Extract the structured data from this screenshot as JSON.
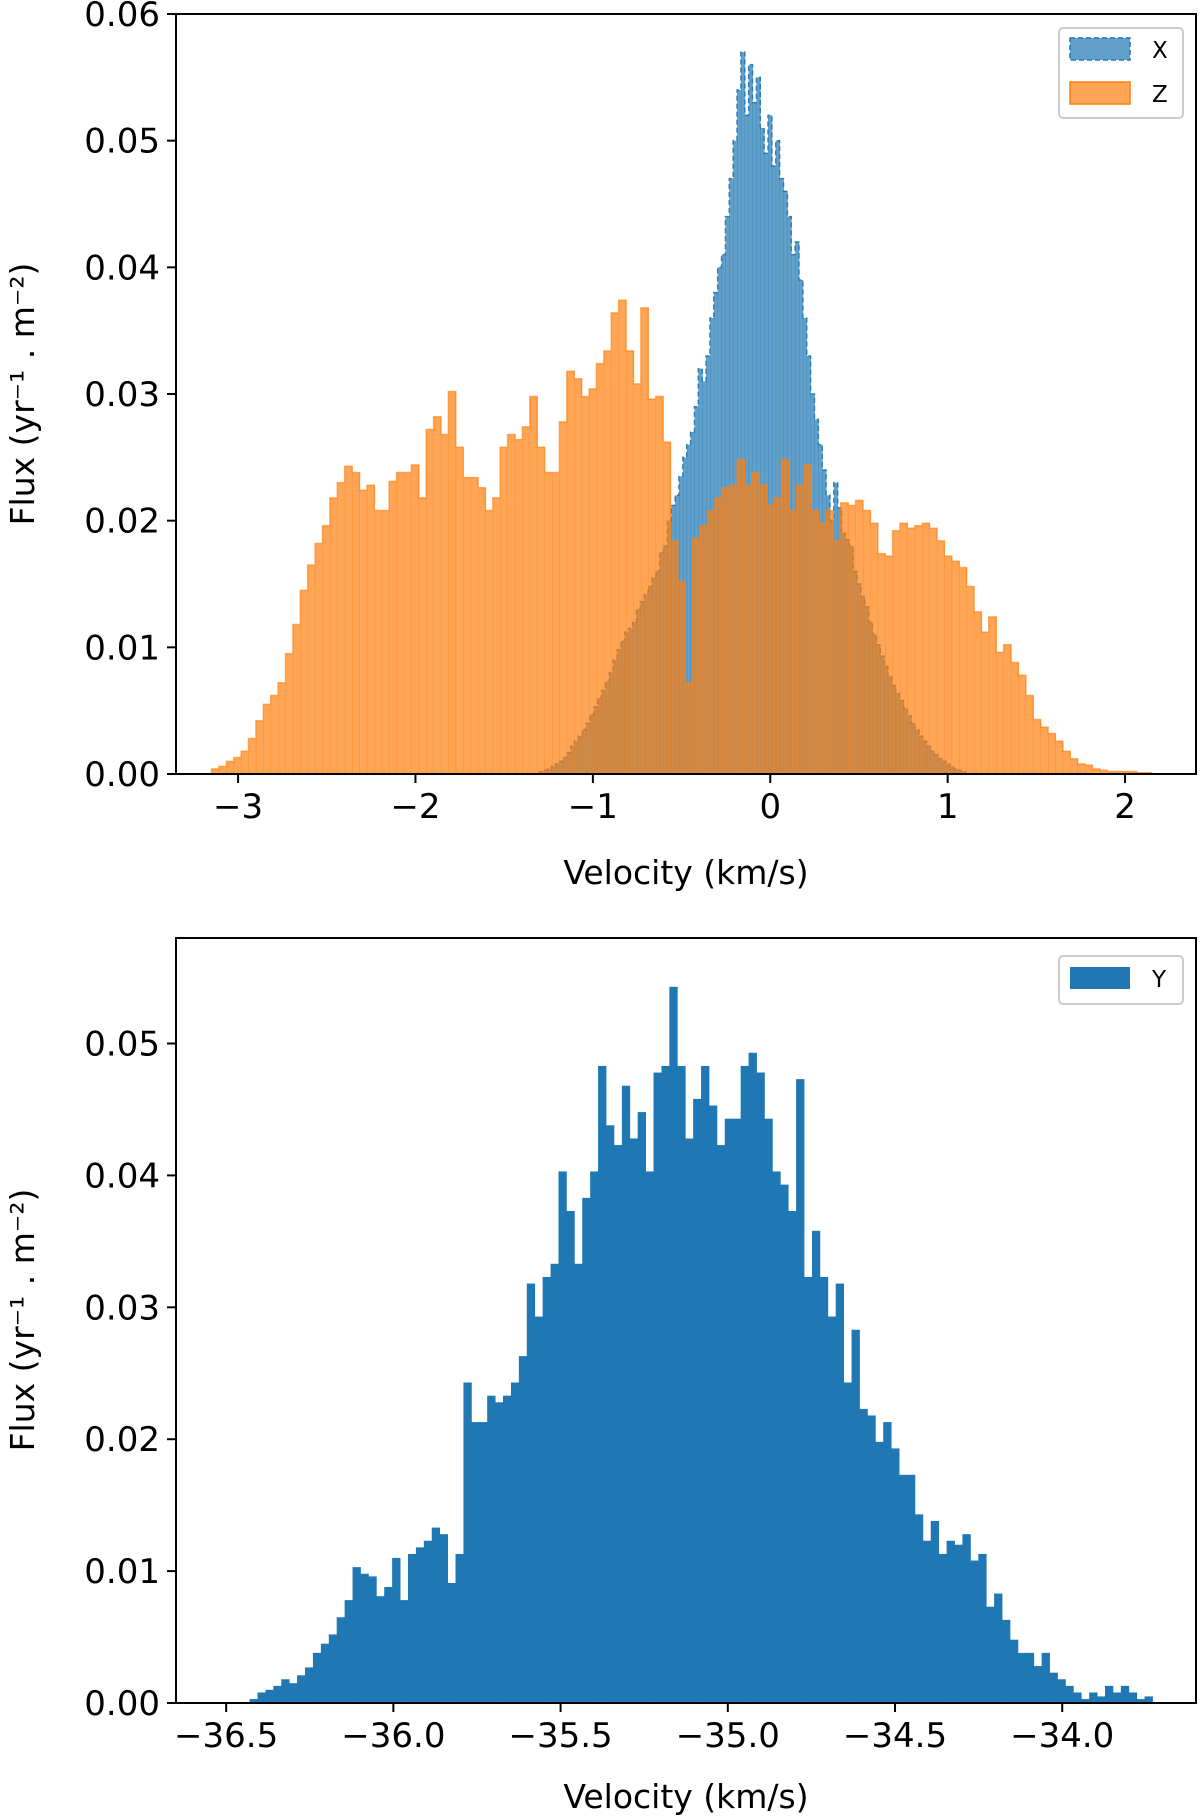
{
  "chart_data": [
    {
      "type": "histogram",
      "panel": "top",
      "xlabel": "Velocity (km/s)",
      "ylabel": "Flux (yr⁻¹ . m⁻²)",
      "xlim": [
        -3.35,
        2.4
      ],
      "ylim": [
        0,
        0.06
      ],
      "xticks": [
        -3,
        -2,
        -1,
        0,
        1,
        2
      ],
      "xtick_labels": [
        "−3",
        "−2",
        "−1",
        "0",
        "1",
        "2"
      ],
      "yticks": [
        0,
        0.01,
        0.02,
        0.03,
        0.04,
        0.05,
        0.06
      ],
      "ytick_labels": [
        "0.00",
        "0.01",
        "0.02",
        "0.03",
        "0.04",
        "0.05",
        "0.06"
      ],
      "legend_position": "upper right",
      "series": [
        {
          "name": "X",
          "color": "#1f77b4",
          "alpha": 0.7,
          "edge_style": "dashed",
          "bin_edges_range": [
            -1.3,
            1.1
          ],
          "values": [
            0.0002,
            0.0003,
            0.0004,
            0.0006,
            0.0008,
            0.001,
            0.0013,
            0.0017,
            0.0022,
            0.0026,
            0.003,
            0.0035,
            0.004,
            0.0047,
            0.0053,
            0.006,
            0.0066,
            0.0073,
            0.008,
            0.009,
            0.0098,
            0.0105,
            0.0112,
            0.0115,
            0.012,
            0.013,
            0.0136,
            0.0142,
            0.0148,
            0.0155,
            0.016,
            0.0175,
            0.018,
            0.02,
            0.0212,
            0.022,
            0.0235,
            0.025,
            0.026,
            0.027,
            0.029,
            0.032,
            0.031,
            0.033,
            0.036,
            0.038,
            0.04,
            0.041,
            0.044,
            0.047,
            0.05,
            0.054,
            0.057,
            0.052,
            0.056,
            0.053,
            0.055,
            0.051,
            0.049,
            0.052,
            0.048,
            0.05,
            0.047,
            0.046,
            0.044,
            0.041,
            0.042,
            0.039,
            0.036,
            0.033,
            0.03,
            0.028,
            0.026,
            0.024,
            0.022,
            0.02,
            0.023,
            0.021,
            0.019,
            0.0185,
            0.018,
            0.016,
            0.015,
            0.014,
            0.0132,
            0.012,
            0.011,
            0.0102,
            0.0093,
            0.0085,
            0.0077,
            0.007,
            0.0064,
            0.0058,
            0.0052,
            0.0046,
            0.004,
            0.0035,
            0.003,
            0.0026,
            0.0022,
            0.0018,
            0.0015,
            0.0012,
            0.001,
            0.0008,
            0.0006,
            0.0004,
            0.0003,
            0.0002
          ]
        },
        {
          "name": "Z",
          "color": "#ff7f0e",
          "alpha": 0.7,
          "edge_style": "solid",
          "bin_edges_range": [
            -3.15,
            2.15
          ],
          "values": [
            0.0004,
            0.0006,
            0.001,
            0.0013,
            0.0018,
            0.0028,
            0.0042,
            0.0055,
            0.0062,
            0.0072,
            0.0095,
            0.0118,
            0.0145,
            0.0165,
            0.0182,
            0.0196,
            0.0218,
            0.023,
            0.0243,
            0.0238,
            0.0224,
            0.0228,
            0.0208,
            0.0208,
            0.0231,
            0.0238,
            0.0238,
            0.0244,
            0.0218,
            0.0272,
            0.0282,
            0.0268,
            0.0302,
            0.0258,
            0.0234,
            0.0234,
            0.0226,
            0.0208,
            0.0218,
            0.0258,
            0.0268,
            0.0264,
            0.0274,
            0.0298,
            0.0258,
            0.0238,
            0.0238,
            0.0278,
            0.0318,
            0.0312,
            0.0298,
            0.0304,
            0.0324,
            0.0334,
            0.0364,
            0.0374,
            0.0334,
            0.0308,
            0.0368,
            0.0296,
            0.0298,
            0.0262,
            0.0184,
            0.0152,
            0.0072,
            0.0186,
            0.0196,
            0.0208,
            0.0218,
            0.0226,
            0.0228,
            0.0248,
            0.0228,
            0.0238,
            0.0228,
            0.0212,
            0.0218,
            0.0248,
            0.0208,
            0.0228,
            0.0244,
            0.0208,
            0.0198,
            0.0208,
            0.0184,
            0.0214,
            0.0212,
            0.0216,
            0.0208,
            0.0198,
            0.0174,
            0.0172,
            0.0192,
            0.0198,
            0.0194,
            0.0196,
            0.0198,
            0.0194,
            0.0184,
            0.0172,
            0.0168,
            0.0163,
            0.0148,
            0.0128,
            0.0112,
            0.0124,
            0.0096,
            0.0102,
            0.0088,
            0.0078,
            0.0062,
            0.0043,
            0.0037,
            0.0032,
            0.0026,
            0.0018,
            0.0012,
            0.0008,
            0.0007,
            0.0004,
            0.0003,
            0.0002,
            0.0002,
            0.0002,
            0.0002,
            0.0001,
            0.0001
          ]
        }
      ]
    },
    {
      "type": "histogram",
      "panel": "bottom",
      "xlabel": "Velocity (km/s)",
      "ylabel": "Flux (yr⁻¹ . m⁻²)",
      "xlim": [
        -36.65,
        -33.6
      ],
      "ylim": [
        0,
        0.058
      ],
      "xticks": [
        -36.5,
        -36.0,
        -35.5,
        -35.0,
        -34.5,
        -34.0
      ],
      "xtick_labels": [
        "−36.5",
        "−36.0",
        "−35.5",
        "−35.0",
        "−34.5",
        "−34.0"
      ],
      "yticks": [
        0,
        0.01,
        0.02,
        0.03,
        0.04,
        0.05
      ],
      "ytick_labels": [
        "0.00",
        "0.01",
        "0.02",
        "0.03",
        "0.04",
        "0.05"
      ],
      "legend_position": "upper right",
      "series": [
        {
          "name": "Y",
          "color": "#1f77b4",
          "alpha": 1.0,
          "edge_style": "none",
          "bin_edges_range": [
            -36.43,
            -33.73
          ],
          "values": [
            0.0003,
            0.0008,
            0.001,
            0.0013,
            0.0018,
            0.0015,
            0.0021,
            0.0027,
            0.0038,
            0.0045,
            0.0052,
            0.0065,
            0.0078,
            0.0103,
            0.0098,
            0.0096,
            0.0081,
            0.0088,
            0.011,
            0.0078,
            0.0113,
            0.0118,
            0.0123,
            0.0133,
            0.0128,
            0.0091,
            0.0113,
            0.0243,
            0.0213,
            0.0213,
            0.0233,
            0.0228,
            0.0233,
            0.0243,
            0.0263,
            0.0318,
            0.0293,
            0.0323,
            0.0333,
            0.0403,
            0.0373,
            0.0333,
            0.0383,
            0.0403,
            0.0483,
            0.0438,
            0.0423,
            0.0468,
            0.0428,
            0.0448,
            0.0403,
            0.0478,
            0.0483,
            0.0543,
            0.0483,
            0.0428,
            0.0458,
            0.0483,
            0.0453,
            0.0423,
            0.0443,
            0.0443,
            0.0483,
            0.0493,
            0.0478,
            0.0443,
            0.0403,
            0.0393,
            0.0373,
            0.0473,
            0.0323,
            0.0358,
            0.0323,
            0.0293,
            0.0318,
            0.0243,
            0.0283,
            0.0223,
            0.0218,
            0.0198,
            0.0213,
            0.0193,
            0.0173,
            0.0173,
            0.0143,
            0.0123,
            0.0138,
            0.0113,
            0.0123,
            0.012,
            0.0128,
            0.0108,
            0.0113,
            0.0073,
            0.0083,
            0.0063,
            0.0048,
            0.0038,
            0.0038,
            0.0028,
            0.0038,
            0.0023,
            0.0018,
            0.0013,
            0.0008,
            0.0003,
            0.0008,
            0.0005,
            0.0013,
            0.0008,
            0.0013,
            0.0008,
            0.0003,
            0.0005
          ]
        }
      ]
    }
  ]
}
